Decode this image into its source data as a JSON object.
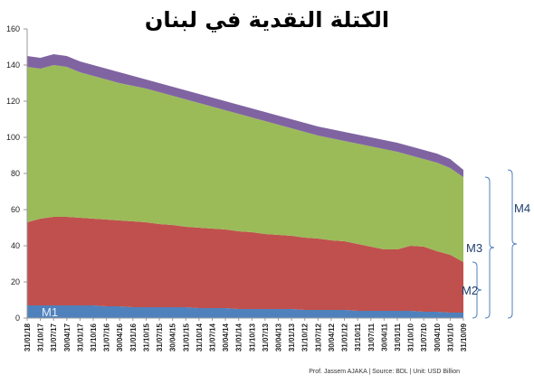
{
  "chart_data": {
    "type": "stacked_area",
    "title": "الكتلة النقدية في لبنان",
    "footnote": "Prof. Jassem AJAKA | Source: BDL | Unit: USD Billion",
    "categories": [
      "31/01/18",
      "31/10/17",
      "31/07/17",
      "30/04/17",
      "31/01/17",
      "31/10/16",
      "31/07/16",
      "30/04/16",
      "31/01/16",
      "31/10/15",
      "31/07/15",
      "30/04/15",
      "31/01/15",
      "31/10/14",
      "31/07/14",
      "30/04/14",
      "31/01/14",
      "31/10/13",
      "31/07/13",
      "30/04/13",
      "31/01/13",
      "31/10/12",
      "31/07/12",
      "30/04/12",
      "31/01/12",
      "31/10/11",
      "31/07/11",
      "30/04/11",
      "31/01/11",
      "31/10/10",
      "31/07/10",
      "30/04/10",
      "31/01/10",
      "31/10/09"
    ],
    "series": [
      {
        "name": "M1",
        "color": "#4f81bd",
        "values": [
          7,
          7,
          7,
          7,
          7,
          7,
          6.5,
          6.5,
          6,
          6,
          6,
          6,
          6,
          5.5,
          5.5,
          5.5,
          5,
          5,
          5,
          5,
          5,
          4.5,
          4.5,
          4.5,
          4.5,
          4,
          4,
          4,
          4,
          4,
          3.5,
          3.5,
          3,
          3
        ]
      },
      {
        "name": "M2",
        "color": "#c0504d",
        "values": [
          46,
          48,
          49,
          49,
          48.5,
          48,
          48,
          47.5,
          47.5,
          47,
          46,
          45.5,
          44.5,
          44.5,
          44,
          43.5,
          43,
          42.5,
          41.5,
          41,
          40.5,
          40,
          39.5,
          38.5,
          38,
          37,
          35.5,
          34,
          34,
          36,
          36,
          33.5,
          32,
          28
        ]
      },
      {
        "name": "M3",
        "color": "#9bbb59",
        "values": [
          86,
          83,
          84,
          83,
          80.5,
          79,
          77.5,
          76,
          75,
          74,
          73,
          71.5,
          70.5,
          69,
          67.5,
          66,
          65,
          63.5,
          62.5,
          61,
          59.5,
          58.5,
          57,
          56.5,
          55.5,
          55.5,
          55.5,
          55.5,
          54,
          50,
          48.5,
          49,
          48,
          47
        ]
      },
      {
        "name": "M4",
        "color": "#8064a2",
        "values": [
          6,
          6,
          6,
          6,
          6,
          6,
          6,
          6,
          5.5,
          5,
          5,
          5,
          5,
          5,
          5,
          5,
          5,
          5,
          5,
          5,
          5,
          5,
          5,
          5,
          5,
          5,
          5,
          5,
          5,
          5,
          5,
          5,
          5,
          4
        ]
      }
    ],
    "ylim": [
      0,
      160
    ],
    "yticks": [
      0,
      20,
      40,
      60,
      80,
      100,
      120,
      140,
      160
    ],
    "grid": false
  }
}
